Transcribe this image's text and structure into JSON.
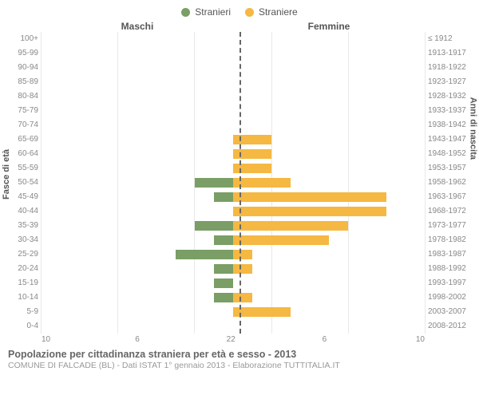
{
  "legend": {
    "male": {
      "label": "Stranieri",
      "color": "#7a9e65"
    },
    "female": {
      "label": "Straniere",
      "color": "#f5b842"
    }
  },
  "headers": {
    "left": "Maschi",
    "right": "Femmine"
  },
  "axis_titles": {
    "left": "Fasce di età",
    "right": "Anni di nascita"
  },
  "chart": {
    "type": "population-pyramid",
    "x_max": 10,
    "x_ticks": [
      10,
      6,
      2,
      2,
      6,
      10
    ],
    "grid_color": "#e8e8e8",
    "centerline_color": "#666666",
    "background": "#ffffff",
    "male_color": "#7a9e65",
    "female_color": "#f5b842",
    "rows": [
      {
        "age": "100+",
        "birth": "≤ 1912",
        "m": 0,
        "f": 0
      },
      {
        "age": "95-99",
        "birth": "1913-1917",
        "m": 0,
        "f": 0
      },
      {
        "age": "90-94",
        "birth": "1918-1922",
        "m": 0,
        "f": 0
      },
      {
        "age": "85-89",
        "birth": "1923-1927",
        "m": 0,
        "f": 0
      },
      {
        "age": "80-84",
        "birth": "1928-1932",
        "m": 0,
        "f": 0
      },
      {
        "age": "75-79",
        "birth": "1933-1937",
        "m": 0,
        "f": 0
      },
      {
        "age": "70-74",
        "birth": "1938-1942",
        "m": 0,
        "f": 0
      },
      {
        "age": "65-69",
        "birth": "1943-1947",
        "m": 0,
        "f": 2
      },
      {
        "age": "60-64",
        "birth": "1948-1952",
        "m": 0,
        "f": 2
      },
      {
        "age": "55-59",
        "birth": "1953-1957",
        "m": 0,
        "f": 2
      },
      {
        "age": "50-54",
        "birth": "1958-1962",
        "m": 2,
        "f": 3
      },
      {
        "age": "45-49",
        "birth": "1963-1967",
        "m": 1,
        "f": 8
      },
      {
        "age": "40-44",
        "birth": "1968-1972",
        "m": 0,
        "f": 8
      },
      {
        "age": "35-39",
        "birth": "1973-1977",
        "m": 2,
        "f": 6
      },
      {
        "age": "30-34",
        "birth": "1978-1982",
        "m": 1,
        "f": 5
      },
      {
        "age": "25-29",
        "birth": "1983-1987",
        "m": 3,
        "f": 1
      },
      {
        "age": "20-24",
        "birth": "1988-1992",
        "m": 1,
        "f": 1
      },
      {
        "age": "15-19",
        "birth": "1993-1997",
        "m": 1,
        "f": 0
      },
      {
        "age": "10-14",
        "birth": "1998-2002",
        "m": 1,
        "f": 1
      },
      {
        "age": "5-9",
        "birth": "2003-2007",
        "m": 0,
        "f": 3
      },
      {
        "age": "0-4",
        "birth": "2008-2012",
        "m": 0,
        "f": 0
      }
    ]
  },
  "footer": {
    "title": "Popolazione per cittadinanza straniera per età e sesso - 2013",
    "subtitle": "COMUNE DI FALCADE (BL) - Dati ISTAT 1° gennaio 2013 - Elaborazione TUTTITALIA.IT"
  }
}
